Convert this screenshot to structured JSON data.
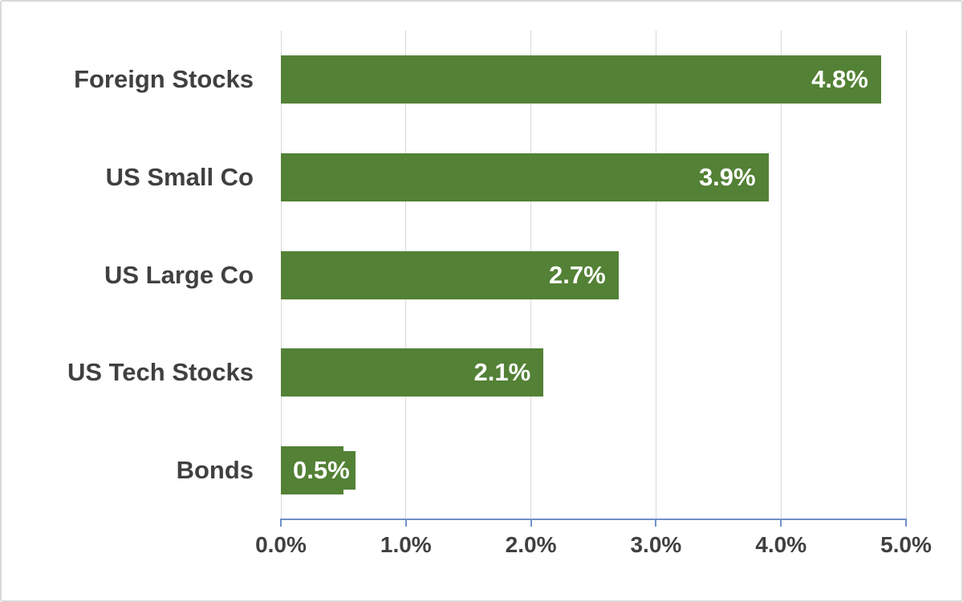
{
  "chart_data": {
    "type": "bar",
    "orientation": "horizontal",
    "title": "",
    "xlabel": "",
    "ylabel": "",
    "categories": [
      "Foreign Stocks",
      "US Small Co",
      "US Large Co",
      "US Tech Stocks",
      "Bonds"
    ],
    "values": [
      4.8,
      3.9,
      2.7,
      2.1,
      0.5
    ],
    "value_labels": [
      "4.8%",
      "3.9%",
      "2.7%",
      "2.1%",
      "0.5%"
    ],
    "x_ticks": [
      "0.0%",
      "1.0%",
      "2.0%",
      "3.0%",
      "4.0%",
      "5.0%"
    ],
    "xlim": [
      0,
      5
    ],
    "grid": true,
    "legend": "none",
    "colors": {
      "bar": "#538135",
      "value_label_text": "#ffffff",
      "category_text": "#404040",
      "tick_label_text": "#404040",
      "gridline": "#d9d9d9",
      "axis_line": "#7090c8",
      "background": "#ffffff",
      "border": "#d9d9d9"
    }
  }
}
